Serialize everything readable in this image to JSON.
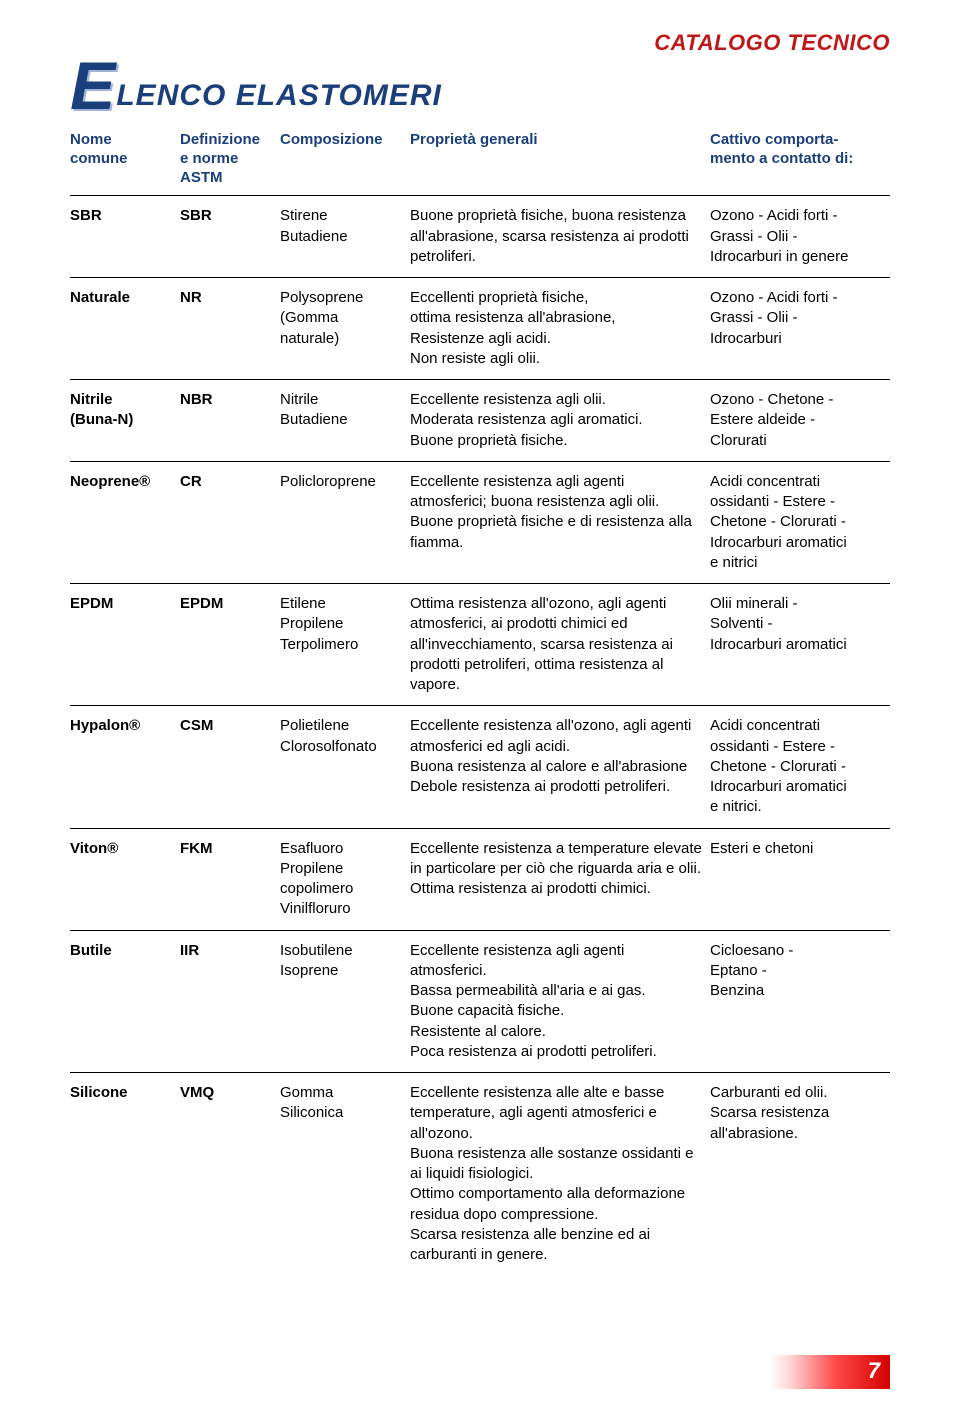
{
  "colors": {
    "header_red": "#c01818",
    "title_blue": "#1a3f7a",
    "drop_shadow": "#9fb4d6",
    "rule": "#000000",
    "badge_gradient": [
      "#ffffff",
      "#ffd2d2",
      "#ff4848",
      "#d40000"
    ],
    "badge_text": "#ffffff"
  },
  "header": {
    "catalog": "CATALOGO TECNICO",
    "title_drop": "E",
    "title_rest": "LENCO ELASTOMERI"
  },
  "table": {
    "columns": [
      "Nome\ncomune",
      "Definizione\ne norme ASTM",
      "Composizione",
      "Proprietà generali",
      "Cattivo comporta-\nmento a contatto di:"
    ],
    "rows": [
      {
        "name": "SBR",
        "astm": "SBR",
        "comp": "Stirene\nButadiene",
        "prop": "Buone proprietà fisiche, buona resistenza all'abrasione, scarsa resistenza ai prodotti petroliferi.",
        "bad": "Ozono - Acidi forti -\nGrassi - Olii -\nIdrocarburi in genere"
      },
      {
        "name": "Naturale",
        "astm": "NR",
        "comp": "Polysoprene\n(Gomma\nnaturale)",
        "prop": "Eccellenti proprietà fisiche,\nottima resistenza all'abrasione,\nResistenze agli acidi.\nNon resiste agli olii.",
        "bad": "Ozono - Acidi forti -\nGrassi - Olii -\nIdrocarburi"
      },
      {
        "name": "Nitrile\n(Buna-N)",
        "astm": "NBR",
        "comp": "Nitrile\nButadiene",
        "prop": "Eccellente resistenza agli olii.\nModerata resistenza agli aromatici.\nBuone proprietà fisiche.",
        "bad": "Ozono - Chetone -\nEstere aldeide -\nClorurati"
      },
      {
        "name": "Neoprene®",
        "astm": "CR",
        "comp": "Policloroprene",
        "prop": "Eccellente resistenza agli agenti atmosferici; buona resistenza agli olii.\nBuone proprietà fisiche e di resistenza alla fiamma.",
        "bad": "Acidi concentrati\nossidanti - Estere -\nChetone - Clorurati -\nIdrocarburi aromatici\ne nitrici"
      },
      {
        "name": "EPDM",
        "astm": "EPDM",
        "comp": "Etilene\nPropilene\nTerpolimero",
        "prop": "Ottima resistenza all'ozono, agli agenti atmosferici, ai prodotti chimici ed all'invecchiamento, scarsa resistenza ai prodotti petroliferi, ottima resistenza al vapore.",
        "bad": "Olii minerali -\nSolventi -\nIdrocarburi aromatici"
      },
      {
        "name": "Hypalon®",
        "astm": "CSM",
        "comp": "Polietilene\nClorosolfonato",
        "prop": "Eccellente resistenza all'ozono, agli agenti atmosferici ed agli acidi.\nBuona resistenza al calore e all'abrasione\nDebole resistenza ai prodotti petroliferi.",
        "bad": "Acidi concentrati\nossidanti - Estere -\nChetone - Clorurati -\nIdrocarburi aromatici\ne nitrici."
      },
      {
        "name": "Viton®",
        "astm": "FKM",
        "comp": "Esafluoro\nPropilene\ncopolimero\nVinilfloruro",
        "prop": "Eccellente resistenza a temperature elevate in particolare per ciò che riguarda aria e olii.\nOttima resistenza ai prodotti chimici.",
        "bad": "Esteri e chetoni"
      },
      {
        "name": "Butile",
        "astm": "IIR",
        "comp": "Isobutilene\nIsoprene",
        "prop": "Eccellente resistenza agli agenti atmosferici.\nBassa permeabilità all'aria e ai gas.\nBuone capacità fisiche.\nResistente al calore.\nPoca resistenza ai prodotti petroliferi.",
        "bad": "Cicloesano -\nEptano -\nBenzina"
      },
      {
        "name": "Silicone",
        "astm": "VMQ",
        "comp": "Gomma\nSiliconica",
        "prop": "Eccellente resistenza alle alte e basse temperature, agli agenti atmosferici e all'ozono.\nBuona resistenza alle sostanze ossidanti e ai liquidi fisiologici.\nOttimo comportamento alla deformazione residua dopo compressione.\nScarsa resistenza alle benzine ed ai carburanti in genere.",
        "bad": "Carburanti ed olii.\nScarsa resistenza\nall'abrasione."
      }
    ]
  },
  "page_number": "7"
}
